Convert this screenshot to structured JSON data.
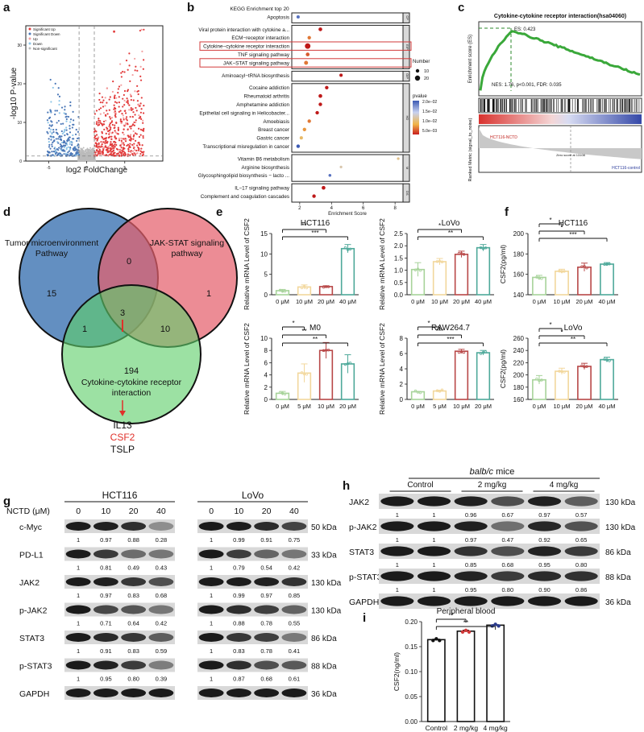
{
  "panels": {
    "a": {
      "letter": "a",
      "ylabel": "-log10 P-value",
      "xlabel": "log2 FoldChange",
      "legend": [
        "Significant Up",
        "Significant Down",
        "Up",
        "Down",
        "Non-significant"
      ],
      "xticks": [
        "-5",
        "0",
        "5"
      ],
      "yticks": [
        "0",
        "10",
        "20",
        "30"
      ],
      "colors": {
        "sig_up": "#e23b3b",
        "sig_down": "#4d79b8",
        "up": "#f3a0a0",
        "down": "#8ec6e8",
        "ns": "#bbbbbb"
      }
    },
    "b": {
      "letter": "b",
      "title": "KEGG Enrichment top 20",
      "xlabel": "Enrichment Score",
      "xticks": [
        "2",
        "4",
        "6",
        "8"
      ],
      "groups": [
        {
          "name": "Cellular Processes",
          "short": "CP",
          "terms": [
            {
              "term": "Apoptosis",
              "score": 1.9,
              "p": 0.019,
              "size": 6
            }
          ]
        },
        {
          "name": "Environmental Information Processing",
          "short": "EIP",
          "terms": [
            {
              "term": "Viral protein interaction with cytokine a...",
              "score": 3.3,
              "p": 0.001,
              "size": 8
            },
            {
              "term": "ECM−receptor interaction",
              "score": 2.6,
              "p": 0.008,
              "size": 7
            },
            {
              "term": "Cytokine−cytokine receptor interaction",
              "score": 2.5,
              "p": 0.0008,
              "size": 16,
              "highlight": true
            },
            {
              "term": "TNF signaling pathway",
              "score": 2.5,
              "p": 0.007,
              "size": 8
            },
            {
              "term": "JAK−STAT signaling pathway",
              "score": 2.4,
              "p": 0.008,
              "size": 9,
              "highlight": true
            }
          ]
        },
        {
          "name": "Genetic Information Processing",
          "short": "GIP",
          "terms": [
            {
              "term": "Aminoacyl−tRNA biosynthesis",
              "score": 4.6,
              "p": 0.001,
              "size": 6
            }
          ]
        },
        {
          "name": "Human Diseases",
          "short": "HD",
          "terms": [
            {
              "term": "Cocaine addiction",
              "score": 3.7,
              "p": 0.001,
              "size": 7
            },
            {
              "term": "Rheumatoid arthritis",
              "score": 3.3,
              "p": 0.001,
              "size": 8
            },
            {
              "term": "Amphetamine addiction",
              "score": 3.3,
              "p": 0.001,
              "size": 7
            },
            {
              "term": "Epithelial cell signaling in Helicobacter...",
              "score": 3.1,
              "p": 0.002,
              "size": 7
            },
            {
              "term": "Amoebiasis",
              "score": 2.6,
              "p": 0.008,
              "size": 7
            },
            {
              "term": "Breast cancer",
              "score": 2.3,
              "p": 0.009,
              "size": 7
            },
            {
              "term": "Gastric cancer",
              "score": 2.1,
              "p": 0.011,
              "size": 6
            },
            {
              "term": "Transcriptional misregulation in cancer",
              "score": 1.9,
              "p": 0.02,
              "size": 7
            }
          ]
        },
        {
          "name": "Metabolism",
          "short": "M",
          "terms": [
            {
              "term": "Vitamin B6 metabolism",
              "score": 8.2,
              "p": 0.012,
              "size": 3
            },
            {
              "term": "Arginine biosynthesis",
              "score": 4.6,
              "p": 0.013,
              "size": 3
            },
            {
              "term": "Glycosphingolipid biosynthesis − lacto ...",
              "score": 3.9,
              "p": 0.019,
              "size": 4
            }
          ]
        },
        {
          "name": "Organismal Systems",
          "short": "OS",
          "terms": [
            {
              "term": "IL−17 signaling pathway",
              "score": 3.5,
              "p": 0.002,
              "size": 8
            },
            {
              "term": "Complement and coagulation cascades",
              "score": 2.9,
              "p": 0.001,
              "size": 7
            }
          ]
        }
      ],
      "legend_number_title": "Number",
      "legend_number": [
        "10",
        "20"
      ],
      "legend_p_title": "pvalue",
      "legend_p": [
        "2.0e−02",
        "1.5e−02",
        "1.0e−02",
        "5.0e−03"
      ]
    },
    "c": {
      "letter": "c",
      "title": "Cytokine-cytokine receptor interaction(hsa04060)",
      "ylabel_top": "Enrichment score (ES)",
      "ylabel_bottom": "Ranked Metric (signal_to_noise)",
      "es": "ES: 0.423",
      "stats": "NES: 1.76, p<0.001, FDR: 0.035",
      "left_label": "HCT116-NCTD",
      "right_label": "HCT116-control",
      "zero_label": "Zero score at 13108"
    },
    "d": {
      "letter": "d",
      "circles": [
        "Tumor microenvironment Pathway",
        "JAK-STAT signaling pathway",
        "Cytokine-cytokine receptor interaction"
      ],
      "circle_lines": [
        [
          "Tumor microenvironment",
          "Pathway"
        ],
        [
          "JAK-STAT signaling",
          "pathway"
        ],
        [
          "Cytokine-cytokine receptor",
          "interaction"
        ]
      ],
      "counts": {
        "a_only": "15",
        "b_only": "1",
        "c_only": "194",
        "ab": "0",
        "ac": "1",
        "bc": "10",
        "abc": "3"
      },
      "genes": [
        "IL13",
        "CSF2",
        "TSLP"
      ],
      "highlight_gene": "CSF2",
      "colors": {
        "a": "#4d7fb8",
        "b": "#e4606c",
        "c": "#5fcf6a",
        "arrow": "#e0302a"
      }
    },
    "e": {
      "letter": "e",
      "ylabel": "Relative mRNA Level of CSF2",
      "charts": [
        {
          "title": "HCT116",
          "categories": [
            "0 μM",
            "10 μM",
            "20 μM",
            "40 μM"
          ],
          "values": [
            1.0,
            1.9,
            2.0,
            11.3
          ],
          "errors": [
            0.3,
            0.5,
            0.2,
            1.0
          ],
          "ylim": [
            0,
            15
          ],
          "yticks": [
            0,
            5,
            10,
            15
          ],
          "sig": [
            {
              "from": 0,
              "to": 2,
              "label": "**"
            },
            {
              "from": 0,
              "to": 3,
              "label": "***"
            }
          ]
        },
        {
          "title": "LoVo",
          "categories": [
            "0 μM",
            "10 μM",
            "20 μM",
            "40 μM"
          ],
          "values": [
            1.03,
            1.35,
            1.65,
            1.92
          ],
          "errors": [
            0.28,
            0.13,
            0.13,
            0.13
          ],
          "ylim": [
            0,
            2.5
          ],
          "yticks": [
            0.0,
            0.5,
            1.0,
            1.5,
            2.0,
            2.5
          ],
          "sig": [
            {
              "from": 0,
              "to": 2,
              "label": "*"
            },
            {
              "from": 0,
              "to": 3,
              "label": "**"
            }
          ]
        },
        {
          "title": "M0",
          "categories": [
            "0 μM",
            "5 μM",
            "10 μM",
            "20 μM"
          ],
          "values": [
            1.0,
            4.3,
            8.0,
            5.8
          ],
          "errors": [
            0.3,
            1.5,
            1.3,
            1.5
          ],
          "ylim": [
            0,
            10
          ],
          "yticks": [
            0,
            2,
            4,
            6,
            8,
            10
          ],
          "sig": [
            {
              "from": 0,
              "to": 1,
              "label": "*"
            },
            {
              "from": 0,
              "to": 2,
              "label": "**"
            },
            {
              "from": 0,
              "to": 3,
              "label": "**"
            }
          ]
        },
        {
          "title": "RAW264.7",
          "categories": [
            "0 μM",
            "5 μM",
            "10 μM",
            "20 μM"
          ],
          "values": [
            1.0,
            1.1,
            6.3,
            6.1
          ],
          "errors": [
            0.05,
            0.1,
            0.25,
            0.3
          ],
          "ylim": [
            0,
            8
          ],
          "yticks": [
            0,
            2,
            4,
            6,
            8
          ],
          "sig": [
            {
              "from": 0,
              "to": 1,
              "label": "*"
            },
            {
              "from": 0,
              "to": 2,
              "label": "***"
            },
            {
              "from": 0,
              "to": 3,
              "label": "***"
            }
          ]
        }
      ],
      "colors": [
        "#a7d39a",
        "#f2d79c",
        "#b84848",
        "#4ea99a"
      ]
    },
    "f": {
      "letter": "f",
      "ylabel": "CSF2(pg/ml)",
      "charts": [
        {
          "title": "HCT116",
          "categories": [
            "0 μM",
            "10 μM",
            "20 μM",
            "40 μM"
          ],
          "values": [
            157,
            163,
            167,
            170
          ],
          "errors": [
            2,
            2,
            4,
            1.5
          ],
          "ylim": [
            140,
            200
          ],
          "yticks": [
            140,
            160,
            180,
            200
          ],
          "sig": [
            {
              "from": 0,
              "to": 1,
              "label": "*"
            },
            {
              "from": 0,
              "to": 2,
              "label": "*"
            },
            {
              "from": 0,
              "to": 3,
              "label": "***"
            }
          ]
        },
        {
          "title": "LoVo",
          "categories": [
            "0 μM",
            "10 μM",
            "20 μM",
            "40 μM"
          ],
          "values": [
            192,
            206,
            214,
            225
          ],
          "errors": [
            7,
            5,
            5,
            4
          ],
          "ylim": [
            160,
            260
          ],
          "yticks": [
            160,
            180,
            200,
            220,
            240,
            260
          ],
          "sig": [
            {
              "from": 0,
              "to": 1,
              "label": "*"
            },
            {
              "from": 0,
              "to": 2,
              "label": "*"
            },
            {
              "from": 0,
              "to": 3,
              "label": "**"
            }
          ]
        }
      ]
    },
    "g": {
      "letter": "g",
      "cells": [
        "HCT116",
        "LoVo"
      ],
      "treatment": "NCTD (μM)",
      "doses": [
        "0",
        "10",
        "20",
        "40"
      ],
      "rows": [
        {
          "name": "c-Myc",
          "kda": "50 kDa",
          "left": [
            "1",
            "0.97",
            "0.88",
            "0.28"
          ],
          "right": [
            "1",
            "0.99",
            "0.91",
            "0.75"
          ]
        },
        {
          "name": "PD-L1",
          "kda": "33 kDa",
          "left": [
            "1",
            "0.81",
            "0.49",
            "0.43"
          ],
          "right": [
            "1",
            "0.79",
            "0.54",
            "0.42"
          ]
        },
        {
          "name": "JAK2",
          "kda": "130 kDa",
          "left": [
            "1",
            "0.97",
            "0.83",
            "0.68"
          ],
          "right": [
            "1",
            "0.99",
            "0.97",
            "0.85"
          ]
        },
        {
          "name": "p-JAK2",
          "kda": "130 kDa",
          "left": [
            "1",
            "0.71",
            "0.64",
            "0.42"
          ],
          "right": [
            "1",
            "0.88",
            "0.78",
            "0.55"
          ]
        },
        {
          "name": "STAT3",
          "kda": "86 kDa",
          "left": [
            "1",
            "0.91",
            "0.83",
            "0.59"
          ],
          "right": [
            "1",
            "0.83",
            "0.78",
            "0.41"
          ]
        },
        {
          "name": "p-STAT3",
          "kda": "88 kDa",
          "left": [
            "1",
            "0.95",
            "0.80",
            "0.39"
          ],
          "right": [
            "1",
            "0.87",
            "0.68",
            "0.61"
          ]
        },
        {
          "name": "GAPDH",
          "kda": "36 kDa",
          "left": [],
          "right": []
        }
      ]
    },
    "h": {
      "letter": "h",
      "mice_italic": "balb/c",
      "mice_rest": " mice",
      "groups": [
        "Control",
        "2 mg/kg",
        "4 mg/kg"
      ],
      "rows": [
        {
          "name": "JAK2",
          "kda": "130 kDa",
          "values": [
            "1",
            "1",
            "0.96",
            "0.67",
            "0.97",
            "0.57"
          ]
        },
        {
          "name": "p-JAK2",
          "kda": "130 kDa",
          "values": [
            "1",
            "1",
            "0.97",
            "0.47",
            "0.92",
            "0.65"
          ]
        },
        {
          "name": "STAT3",
          "kda": "86 kDa",
          "values": [
            "1",
            "1",
            "0.85",
            "0.68",
            "0.95",
            "0.80"
          ]
        },
        {
          "name": "p-STAT3",
          "kda": "88 kDa",
          "values": [
            "1",
            "1",
            "0.95",
            "0.80",
            "0.90",
            "0.86"
          ]
        },
        {
          "name": "GAPDH",
          "kda": "36 kDa",
          "values": []
        }
      ]
    },
    "i": {
      "letter": "i",
      "title": "Peripheral blood",
      "ylabel": "CSF2(ng/ml)",
      "categories": [
        "Control",
        "2 mg/kg",
        "4 mg/kg"
      ],
      "values": [
        0.164,
        0.181,
        0.193
      ],
      "errors": [
        0.001,
        0.002,
        0.001
      ],
      "ylim": [
        0,
        0.2
      ],
      "yticks": [
        "0.00",
        "0.05",
        "0.10",
        "0.15",
        "0.20"
      ],
      "sig": [
        {
          "from": 0,
          "to": 1,
          "label": "**"
        },
        {
          "from": 0,
          "to": 2,
          "label": "**"
        }
      ],
      "colors": [
        "#111111",
        "#d23a3a",
        "#2a3b8f"
      ]
    }
  },
  "chart_data": [
    {
      "type": "scatter",
      "panel": "a",
      "xlabel": "log2 FoldChange",
      "ylabel": "-log10 P-value",
      "series": [
        {
          "name": "Significant Up"
        },
        {
          "name": "Significant Down"
        },
        {
          "name": "Up"
        },
        {
          "name": "Down"
        },
        {
          "name": "Non-significant"
        }
      ]
    },
    {
      "type": "scatter",
      "panel": "b",
      "title": "KEGG Enrichment top 20",
      "xlabel": "Enrichment Score",
      "xlim": [
        1.5,
        8.5
      ]
    },
    {
      "type": "bar",
      "panel": "e-HCT116",
      "title": "HCT116",
      "categories": [
        "0 μM",
        "10 μM",
        "20 μM",
        "40 μM"
      ],
      "values": [
        1.0,
        1.9,
        2.0,
        11.3
      ],
      "ylabel": "Relative mRNA Level of CSF2",
      "ylim": [
        0,
        15
      ]
    },
    {
      "type": "bar",
      "panel": "e-LoVo",
      "title": "LoVo",
      "categories": [
        "0 μM",
        "10 μM",
        "20 μM",
        "40 μM"
      ],
      "values": [
        1.03,
        1.35,
        1.65,
        1.92
      ],
      "ylabel": "Relative mRNA Level of CSF2",
      "ylim": [
        0,
        2.5
      ]
    },
    {
      "type": "bar",
      "panel": "e-M0",
      "title": "M0",
      "categories": [
        "0 μM",
        "5 μM",
        "10 μM",
        "20 μM"
      ],
      "values": [
        1.0,
        4.3,
        8.0,
        5.8
      ],
      "ylabel": "Relative mRNA Level of CSF2",
      "ylim": [
        0,
        10
      ]
    },
    {
      "type": "bar",
      "panel": "e-RAW264.7",
      "title": "RAW264.7",
      "categories": [
        "0 μM",
        "5 μM",
        "10 μM",
        "20 μM"
      ],
      "values": [
        1.0,
        1.1,
        6.3,
        6.1
      ],
      "ylabel": "Relative mRNA Level of CSF2",
      "ylim": [
        0,
        8
      ]
    },
    {
      "type": "bar",
      "panel": "f-HCT116",
      "title": "HCT116",
      "categories": [
        "0 μM",
        "10 μM",
        "20 μM",
        "40 μM"
      ],
      "values": [
        157,
        163,
        167,
        170
      ],
      "ylabel": "CSF2(pg/ml)",
      "ylim": [
        140,
        200
      ]
    },
    {
      "type": "bar",
      "panel": "f-LoVo",
      "title": "LoVo",
      "categories": [
        "0 μM",
        "10 μM",
        "20 μM",
        "40 μM"
      ],
      "values": [
        192,
        206,
        214,
        225
      ],
      "ylabel": "CSF2(pg/ml)",
      "ylim": [
        160,
        260
      ]
    },
    {
      "type": "bar",
      "panel": "i",
      "title": "Peripheral blood",
      "categories": [
        "Control",
        "2 mg/kg",
        "4 mg/kg"
      ],
      "values": [
        0.164,
        0.181,
        0.193
      ],
      "ylabel": "CSF2(ng/ml)",
      "ylim": [
        0,
        0.2
      ]
    }
  ]
}
